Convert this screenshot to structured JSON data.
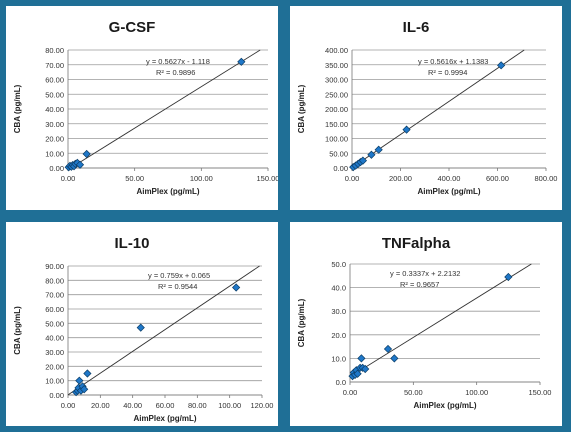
{
  "chart_data": [
    {
      "type": "scatter",
      "title": "G-CSF",
      "xlabel": "AimPlex (pg/mL)",
      "ylabel": "CBA (pg/mL)",
      "xlim": [
        0,
        150
      ],
      "ylim": [
        0,
        80
      ],
      "xticks": [
        "0.00",
        "50.00",
        "100.00",
        "150.00"
      ],
      "yticks": [
        "0.00",
        "10.00",
        "20.00",
        "30.00",
        "40.00",
        "50.00",
        "60.00",
        "70.00",
        "80.00"
      ],
      "equation": "y = 0.5627x - 1.118",
      "r2": "R² = 0.9896",
      "points": [
        {
          "x": 0.5,
          "y": 0.5
        },
        {
          "x": 1.5,
          "y": 1.5
        },
        {
          "x": 2.5,
          "y": 0.8
        },
        {
          "x": 3.5,
          "y": 2.0
        },
        {
          "x": 4.5,
          "y": 1.2
        },
        {
          "x": 5.5,
          "y": 2.8
        },
        {
          "x": 7,
          "y": 3.5
        },
        {
          "x": 9,
          "y": 2.2
        },
        {
          "x": 14,
          "y": 9.5
        },
        {
          "x": 130,
          "y": 72
        }
      ],
      "trendline": {
        "slope": 0.5627,
        "intercept": -1.118
      },
      "marker_color": "#1f77c8"
    },
    {
      "type": "scatter",
      "title": "IL-6",
      "xlabel": "AimPlex (pg/mL)",
      "ylabel": "CBA (pg/mL)",
      "xlim": [
        0,
        800
      ],
      "ylim": [
        0,
        400
      ],
      "xticks": [
        "0.00",
        "200.00",
        "400.00",
        "600.00",
        "800.00"
      ],
      "yticks": [
        "0.00",
        "50.00",
        "100.00",
        "150.00",
        "200.00",
        "250.00",
        "300.00",
        "350.00",
        "400.00"
      ],
      "equation": "y = 0.5616x + 1.1383",
      "r2": "R² = 0.9994",
      "points": [
        {
          "x": 5,
          "y": 3
        },
        {
          "x": 15,
          "y": 8
        },
        {
          "x": 25,
          "y": 14
        },
        {
          "x": 35,
          "y": 20
        },
        {
          "x": 45,
          "y": 25
        },
        {
          "x": 80,
          "y": 45
        },
        {
          "x": 110,
          "y": 62
        },
        {
          "x": 225,
          "y": 130
        },
        {
          "x": 615,
          "y": 348
        }
      ],
      "trendline": {
        "slope": 0.5616,
        "intercept": 1.1383
      },
      "marker_color": "#1f77c8"
    },
    {
      "type": "scatter",
      "title": "IL-10",
      "xlabel": "AimPlex (pg/mL)",
      "ylabel": "CBA (pg/mL)",
      "xlim": [
        0,
        120
      ],
      "ylim": [
        0,
        90
      ],
      "xticks": [
        "0.00",
        "20.00",
        "40.00",
        "60.00",
        "80.00",
        "100.00",
        "120.00"
      ],
      "yticks": [
        "0.00",
        "10.00",
        "20.00",
        "30.00",
        "40.00",
        "50.00",
        "60.00",
        "70.00",
        "80.00",
        "90.00"
      ],
      "equation": "y = 0.759x + 0.065",
      "r2": "R² = 0.9544",
      "points": [
        {
          "x": 5,
          "y": 2
        },
        {
          "x": 6,
          "y": 3
        },
        {
          "x": 6.5,
          "y": 5
        },
        {
          "x": 7,
          "y": 10
        },
        {
          "x": 8,
          "y": 3
        },
        {
          "x": 9,
          "y": 6
        },
        {
          "x": 10,
          "y": 4
        },
        {
          "x": 12,
          "y": 15
        },
        {
          "x": 45,
          "y": 47
        },
        {
          "x": 104,
          "y": 75
        }
      ],
      "trendline": {
        "slope": 0.759,
        "intercept": 0.065
      },
      "marker_color": "#1f77c8"
    },
    {
      "type": "scatter",
      "title": "TNFalpha",
      "xlabel": "AimPlex (pg/mL)",
      "ylabel": "CBA (pg/mL)",
      "xlim": [
        0,
        150
      ],
      "ylim": [
        0,
        50
      ],
      "xticks": [
        "0.00",
        "50.00",
        "100.00",
        "150.00"
      ],
      "yticks": [
        "0.0",
        "10.0",
        "20.0",
        "30.0",
        "40.0",
        "50.0"
      ],
      "equation": "y = 0.3337x + 2.2132",
      "r2": "R² = 0.9657",
      "points": [
        {
          "x": 2,
          "y": 2.5
        },
        {
          "x": 3,
          "y": 4
        },
        {
          "x": 4,
          "y": 3
        },
        {
          "x": 5,
          "y": 5
        },
        {
          "x": 6,
          "y": 3.5
        },
        {
          "x": 8,
          "y": 6
        },
        {
          "x": 9,
          "y": 10
        },
        {
          "x": 10,
          "y": 6
        },
        {
          "x": 12,
          "y": 5.5
        },
        {
          "x": 30,
          "y": 14
        },
        {
          "x": 35,
          "y": 10
        },
        {
          "x": 125,
          "y": 44.5
        }
      ],
      "trendline": {
        "slope": 0.3337,
        "intercept": 2.2132
      },
      "marker_color": "#1f77c8"
    }
  ]
}
